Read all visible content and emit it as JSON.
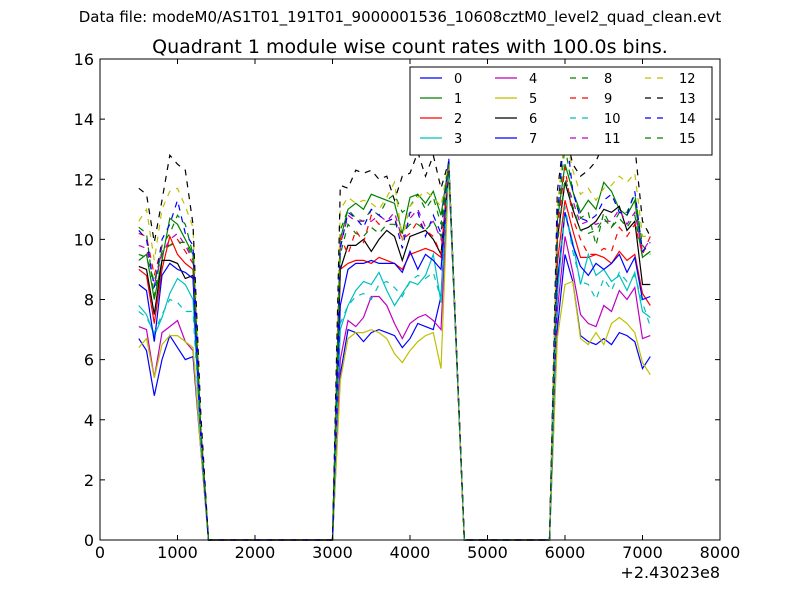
{
  "suptitle": "Data file: modeM0/AS1T01_191T01_9000001536_10608cztM0_level2_quad_clean.evt",
  "chart_data": {
    "type": "line",
    "title": "Quadrant 1 module wise count rates with 100.0s bins.",
    "xlabel": "",
    "ylabel": "",
    "x_offset_label": "+2.43023e8",
    "xlim": [
      0,
      8000
    ],
    "ylim": [
      0,
      16
    ],
    "x_ticks": [
      0,
      1000,
      2000,
      3000,
      4000,
      5000,
      6000,
      7000,
      8000
    ],
    "y_ticks": [
      0,
      2,
      4,
      6,
      8,
      10,
      12,
      14,
      16
    ],
    "x": [
      500,
      600,
      700,
      800,
      900,
      1000,
      1100,
      1200,
      1300,
      1400,
      1500,
      1600,
      1700,
      1800,
      1900,
      2000,
      2100,
      2200,
      2300,
      2400,
      2500,
      2600,
      2700,
      2800,
      2900,
      3000,
      3100,
      3200,
      3300,
      3400,
      3500,
      3600,
      3700,
      3800,
      3900,
      4000,
      4100,
      4200,
      4300,
      4400,
      4500,
      4600,
      4700,
      4800,
      4900,
      5000,
      5100,
      5200,
      5300,
      5400,
      5500,
      5600,
      5700,
      5800,
      5900,
      6000,
      6100,
      6200,
      6300,
      6400,
      6500,
      6600,
      6700,
      6800,
      6900,
      7000,
      7100
    ],
    "segments": [
      {
        "from": 500,
        "to": 1300,
        "xs": [
          500,
          600,
          700,
          800,
          900,
          1000,
          1100,
          1200,
          1300
        ]
      },
      {
        "from": 3100,
        "to": 4500,
        "xs": [
          3100,
          3200,
          3300,
          3400,
          3500,
          3600,
          3700,
          3800,
          3900,
          4000,
          4100,
          4200,
          4300,
          4400,
          4500
        ]
      },
      {
        "from": 5900,
        "to": 7100,
        "xs": [
          5900,
          6000,
          6100,
          6200,
          6300,
          6400,
          6500,
          6600,
          6700,
          6800,
          6900,
          7000,
          7100
        ]
      }
    ],
    "gaps": [
      {
        "from": 1300,
        "to": 1400
      },
      {
        "from": 1400,
        "to": 3000
      },
      {
        "from": 3000,
        "to": 3100
      },
      {
        "from": 4500,
        "to": 4700
      },
      {
        "from": 4700,
        "to": 5800
      },
      {
        "from": 5800,
        "to": 5900
      }
    ],
    "legend_position": "top-right",
    "legend_columns": 4,
    "series": [
      {
        "name": "0",
        "color": "#0000ff",
        "dash": "solid",
        "seg1": [
          6.7,
          6.3,
          4.8,
          6.0,
          6.8,
          6.4,
          6.0,
          6.1,
          3.0
        ],
        "seg2": [
          5.5,
          7.0,
          6.9,
          6.6,
          6.9,
          7.0,
          6.9,
          6.8,
          6.4,
          6.7,
          7.2,
          7.1,
          7.0,
          8.1,
          12.5
        ],
        "seg3": [
          7.0,
          9.5,
          8.6,
          6.8,
          6.6,
          6.5,
          6.7,
          6.5,
          6.9,
          6.8,
          6.6,
          5.7,
          6.1
        ]
      },
      {
        "name": "1",
        "color": "#008000",
        "dash": "solid",
        "seg1": [
          9.3,
          9.5,
          8.0,
          9.3,
          10.7,
          10.5,
          10.0,
          9.5,
          3.6
        ],
        "seg2": [
          10.0,
          11.0,
          11.2,
          11.0,
          11.5,
          11.4,
          11.3,
          11.2,
          10.2,
          11.4,
          11.5,
          11.2,
          11.6,
          10.8,
          12.5
        ],
        "seg3": [
          10.6,
          12.5,
          11.6,
          10.9,
          11.3,
          11.0,
          11.9,
          11.6,
          11.0,
          10.8,
          11.3,
          9.4,
          9.6
        ]
      },
      {
        "name": "2",
        "color": "#ff0000",
        "dash": "solid",
        "seg1": [
          9.0,
          8.8,
          7.2,
          9.0,
          10.1,
          9.5,
          9.2,
          9.0,
          3.5
        ],
        "seg2": [
          9.0,
          9.2,
          9.3,
          9.3,
          9.2,
          9.4,
          9.3,
          9.2,
          9.0,
          9.5,
          9.6,
          9.7,
          9.6,
          9.4,
          12.3
        ],
        "seg3": [
          9.2,
          11.3,
          10.3,
          9.4,
          9.4,
          9.5,
          9.4,
          9.2,
          9.6,
          9.3,
          9.5,
          8.2,
          7.8
        ]
      },
      {
        "name": "3",
        "color": "#00bfbf",
        "dash": "solid",
        "seg1": [
          7.8,
          7.5,
          6.8,
          7.4,
          8.2,
          8.7,
          8.5,
          8.0,
          3.4
        ],
        "seg2": [
          7.0,
          7.8,
          8.3,
          8.6,
          8.5,
          8.9,
          8.3,
          7.8,
          8.2,
          8.6,
          8.5,
          8.8,
          9.5,
          7.9,
          12.4
        ],
        "seg3": [
          8.2,
          10.9,
          9.9,
          8.5,
          9.5,
          8.8,
          9.0,
          8.6,
          8.8,
          8.3,
          8.9,
          7.6,
          7.4
        ]
      },
      {
        "name": "4",
        "color": "#bf00bf",
        "dash": "solid",
        "seg1": [
          7.1,
          7.0,
          5.4,
          6.9,
          7.1,
          7.3,
          6.6,
          6.3,
          3.1
        ],
        "seg2": [
          6.0,
          7.3,
          7.1,
          7.4,
          8.1,
          8.1,
          7.8,
          7.2,
          6.7,
          7.2,
          7.4,
          7.5,
          7.3,
          7.0,
          12.5
        ],
        "seg3": [
          7.6,
          10.1,
          8.9,
          7.5,
          7.2,
          7.1,
          7.8,
          7.6,
          8.3,
          8.0,
          8.4,
          6.7,
          6.8
        ]
      },
      {
        "name": "5",
        "color": "#bfbf00",
        "dash": "solid",
        "seg1": [
          6.4,
          6.7,
          5.4,
          6.5,
          6.8,
          6.8,
          6.6,
          6.4,
          3.0
        ],
        "seg2": [
          5.3,
          6.7,
          6.9,
          6.9,
          7.0,
          6.9,
          6.7,
          6.2,
          5.9,
          6.3,
          6.6,
          6.8,
          6.9,
          5.7,
          12.4
        ],
        "seg3": [
          6.7,
          8.5,
          8.6,
          6.7,
          6.5,
          6.9,
          6.5,
          7.2,
          7.4,
          7.2,
          6.9,
          5.9,
          5.5
        ]
      },
      {
        "name": "6",
        "color": "#000000",
        "dash": "solid",
        "seg1": [
          9.1,
          9.0,
          7.5,
          9.3,
          9.3,
          9.2,
          8.7,
          8.8,
          3.5
        ],
        "seg2": [
          9.0,
          9.8,
          9.8,
          10.0,
          9.6,
          10.0,
          10.3,
          10.1,
          9.3,
          10.1,
          10.2,
          10.3,
          10.0,
          9.5,
          12.3
        ],
        "seg3": [
          10.0,
          11.9,
          11.0,
          10.3,
          10.4,
          10.6,
          11.0,
          10.9,
          11.1,
          10.3,
          10.6,
          8.5,
          8.5
        ]
      },
      {
        "name": "7",
        "color": "#0000ff",
        "dash": "solid",
        "seg1": [
          8.5,
          8.3,
          6.6,
          8.8,
          9.2,
          9.0,
          8.9,
          8.7,
          3.4
        ],
        "seg2": [
          7.8,
          9.0,
          9.2,
          9.2,
          9.3,
          9.2,
          9.2,
          9.2,
          8.9,
          9.6,
          9.0,
          9.5,
          9.3,
          9.0,
          12.4
        ],
        "seg3": [
          8.6,
          10.9,
          9.8,
          9.1,
          8.8,
          9.2,
          9.0,
          9.2,
          9.5,
          8.9,
          9.4,
          8.0,
          8.1
        ]
      },
      {
        "name": "8",
        "color": "#008000",
        "dash": "dashed",
        "seg1": [
          10.4,
          10.2,
          8.1,
          9.8,
          10.2,
          10.8,
          10.5,
          9.5,
          3.8
        ],
        "seg2": [
          10.3,
          11.0,
          10.7,
          10.6,
          11.0,
          10.8,
          11.3,
          11.5,
          10.9,
          11.1,
          11.5,
          11.0,
          11.4,
          10.5,
          12.6
        ],
        "seg3": [
          10.7,
          13.1,
          11.6,
          10.7,
          10.9,
          9.8,
          10.9,
          10.4,
          10.9,
          10.9,
          11.5,
          9.8,
          9.5
        ]
      },
      {
        "name": "9",
        "color": "#ff0000",
        "dash": "dashed",
        "seg1": [
          10.2,
          10.1,
          8.8,
          9.8,
          9.8,
          10.0,
          9.6,
          9.2,
          3.6
        ],
        "seg2": [
          10.1,
          9.5,
          10.3,
          9.9,
          10.8,
          10.5,
          10.6,
          10.7,
          10.0,
          10.2,
          10.6,
          10.3,
          10.1,
          9.5,
          12.5
        ],
        "seg3": [
          10.3,
          12.4,
          10.7,
          10.0,
          9.5,
          9.5,
          9.7,
          9.6,
          10.4,
          10.1,
          10.5,
          9.5,
          10.1
        ]
      },
      {
        "name": "10",
        "color": "#00bfbf",
        "dash": "dashed",
        "seg1": [
          7.6,
          7.4,
          6.9,
          7.5,
          8.0,
          7.9,
          7.6,
          7.6,
          3.3
        ],
        "seg2": [
          7.2,
          7.8,
          8.1,
          8.2,
          8.0,
          8.5,
          8.6,
          8.4,
          8.1,
          8.6,
          8.8,
          8.7,
          8.9,
          8.0,
          12.4
        ],
        "seg3": [
          8.1,
          11.1,
          9.6,
          8.6,
          8.5,
          8.0,
          8.7,
          8.3,
          8.9,
          8.6,
          8.8,
          7.9,
          7.1
        ]
      },
      {
        "name": "11",
        "color": "#bf00bf",
        "dash": "dashed",
        "seg1": [
          9.8,
          9.7,
          8.5,
          9.5,
          10.0,
          10.2,
          9.8,
          9.3,
          3.6
        ],
        "seg2": [
          9.8,
          10.8,
          10.6,
          10.6,
          10.6,
          10.8,
          10.6,
          10.9,
          10.0,
          10.7,
          11.0,
          10.4,
          10.6,
          10.0,
          12.5
        ],
        "seg3": [
          10.0,
          12.0,
          11.3,
          10.5,
          10.6,
          10.5,
          10.6,
          10.6,
          11.0,
          10.5,
          10.9,
          9.6,
          10.0
        ]
      },
      {
        "name": "12",
        "color": "#bfbf00",
        "dash": "dashed",
        "seg1": [
          10.6,
          11.0,
          9.3,
          11.0,
          11.6,
          11.7,
          11.1,
          10.4,
          3.9
        ],
        "seg2": [
          11.0,
          11.4,
          11.2,
          11.3,
          11.2,
          11.0,
          11.4,
          11.9,
          10.0,
          11.1,
          11.4,
          11.6,
          11.4,
          11.1,
          12.6
        ],
        "seg3": [
          11.1,
          13.5,
          12.3,
          11.5,
          11.7,
          11.3,
          11.7,
          11.8,
          12.1,
          11.9,
          12.2,
          10.1,
          10.1
        ]
      },
      {
        "name": "13",
        "color": "#000000",
        "dash": "dashed",
        "seg1": [
          11.7,
          11.5,
          9.9,
          11.3,
          12.8,
          12.5,
          12.3,
          10.5,
          4.2
        ],
        "seg2": [
          11.8,
          11.7,
          12.3,
          12.2,
          12.3,
          12.0,
          12.1,
          11.3,
          12.1,
          12.2,
          12.9,
          12.1,
          12.8,
          11.7,
          12.6
        ],
        "seg3": [
          11.6,
          13.6,
          12.5,
          12.1,
          12.3,
          12.6,
          13.2,
          12.8,
          13.3,
          12.9,
          13.1,
          10.6,
          10.1
        ]
      },
      {
        "name": "14",
        "color": "#0000ff",
        "dash": "dashed",
        "seg1": [
          10.3,
          10.0,
          8.4,
          10.0,
          10.5,
          11.3,
          10.2,
          9.8,
          3.7
        ],
        "seg2": [
          9.7,
          10.9,
          10.7,
          10.4,
          11.0,
          10.8,
          10.6,
          10.7,
          9.7,
          10.9,
          10.9,
          10.1,
          10.8,
          10.2,
          12.7
        ],
        "seg3": [
          10.7,
          13.9,
          11.6,
          10.7,
          10.6,
          10.8,
          11.3,
          11.5,
          10.9,
          10.8,
          11.6,
          9.6,
          9.9
        ]
      },
      {
        "name": "15",
        "color": "#008000",
        "dash": "dashed",
        "seg1": [
          9.5,
          9.4,
          8.6,
          9.6,
          9.8,
          9.9,
          9.9,
          9.4,
          3.6
        ],
        "seg2": [
          9.5,
          10.5,
          10.2,
          10.1,
          10.4,
          10.2,
          10.5,
          10.5,
          10.2,
          10.5,
          10.5,
          10.3,
          10.6,
          10.1,
          12.5
        ],
        "seg3": [
          9.8,
          12.0,
          11.1,
          10.3,
          10.2,
          10.3,
          10.7,
          10.4,
          10.7,
          10.4,
          10.8,
          9.4,
          9.6
        ]
      }
    ]
  }
}
